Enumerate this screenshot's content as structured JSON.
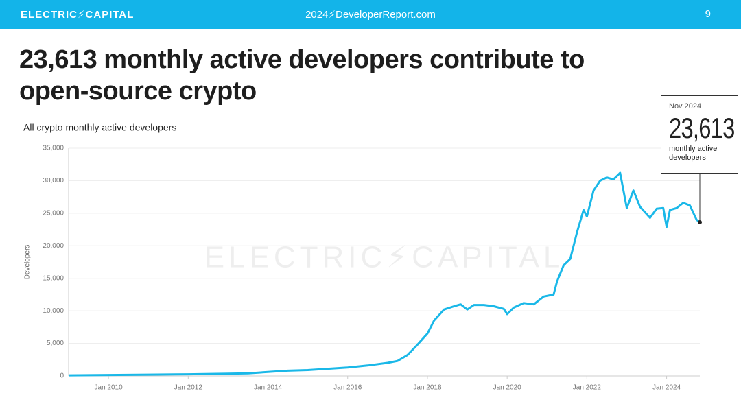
{
  "header": {
    "brand": "ELECTRIC⚡CAPITAL",
    "site": "2024⚡DeveloperReport.com",
    "page": "9"
  },
  "headline": "23,613 monthly active developers contribute to open-source crypto",
  "chart_data": {
    "type": "line",
    "subtitle": "All crypto monthly active developers",
    "y_label": "Developers",
    "watermark": "ELECTRIC⚡CAPITAL",
    "annotation": {
      "date": "Nov 2024",
      "value": "23,613",
      "text": "monthly active developers"
    },
    "xlim": [
      "2009-01",
      "2024-11"
    ],
    "xticks": [
      {
        "value": "2010-01",
        "label": "Jan 2010"
      },
      {
        "value": "2012-01",
        "label": "Jan 2012"
      },
      {
        "value": "2014-01",
        "label": "Jan 2014"
      },
      {
        "value": "2016-01",
        "label": "Jan 2016"
      },
      {
        "value": "2018-01",
        "label": "Jan 2018"
      },
      {
        "value": "2020-01",
        "label": "Jan 2020"
      },
      {
        "value": "2022-01",
        "label": "Jan 2022"
      },
      {
        "value": "2024-01",
        "label": "Jan 2024"
      }
    ],
    "ylim": [
      0,
      35000
    ],
    "yticks": [
      0,
      {
        "value": 5000,
        "label": "5,000"
      },
      {
        "value": 10000,
        "label": "10,000"
      },
      {
        "value": 15000,
        "label": "15,000"
      },
      {
        "value": 20000,
        "label": "20,000"
      },
      {
        "value": 25000,
        "label": "25,000"
      },
      {
        "value": 30000,
        "label": "30,000"
      },
      {
        "value": 35000,
        "label": "35,000"
      }
    ],
    "grid": true,
    "x": [
      "2009-01",
      "2010-01",
      "2011-01",
      "2012-01",
      "2013-01",
      "2013-07",
      "2014-01",
      "2014-07",
      "2015-01",
      "2015-07",
      "2016-01",
      "2016-07",
      "2017-01",
      "2017-04",
      "2017-07",
      "2017-10",
      "2018-01",
      "2018-03",
      "2018-06",
      "2018-09",
      "2018-11",
      "2019-01",
      "2019-03",
      "2019-06",
      "2019-09",
      "2019-12",
      "2020-01",
      "2020-03",
      "2020-06",
      "2020-09",
      "2020-12",
      "2021-03",
      "2021-04",
      "2021-06",
      "2021-08",
      "2021-10",
      "2021-12",
      "2022-01",
      "2022-03",
      "2022-05",
      "2022-07",
      "2022-09",
      "2022-11",
      "2023-01",
      "2023-03",
      "2023-05",
      "2023-08",
      "2023-10",
      "2023-12",
      "2024-01",
      "2024-02",
      "2024-04",
      "2024-06",
      "2024-08",
      "2024-10",
      "2024-11"
    ],
    "series": [
      {
        "name": "All crypto monthly active developers",
        "color": "#1ab8e8",
        "values": [
          100,
          150,
          200,
          250,
          350,
          400,
          600,
          800,
          900,
          1100,
          1300,
          1600,
          2000,
          2300,
          3200,
          4800,
          6500,
          8500,
          10200,
          10700,
          11000,
          10200,
          10900,
          10900,
          10700,
          10300,
          9500,
          10500,
          11200,
          11000,
          12200,
          12500,
          14500,
          17000,
          18000,
          22000,
          25500,
          24500,
          28500,
          30000,
          30500,
          30200,
          31200,
          25800,
          28500,
          26000,
          24300,
          25700,
          25800,
          22900,
          25500,
          25800,
          26600,
          26200,
          24000,
          23613
        ]
      }
    ]
  }
}
